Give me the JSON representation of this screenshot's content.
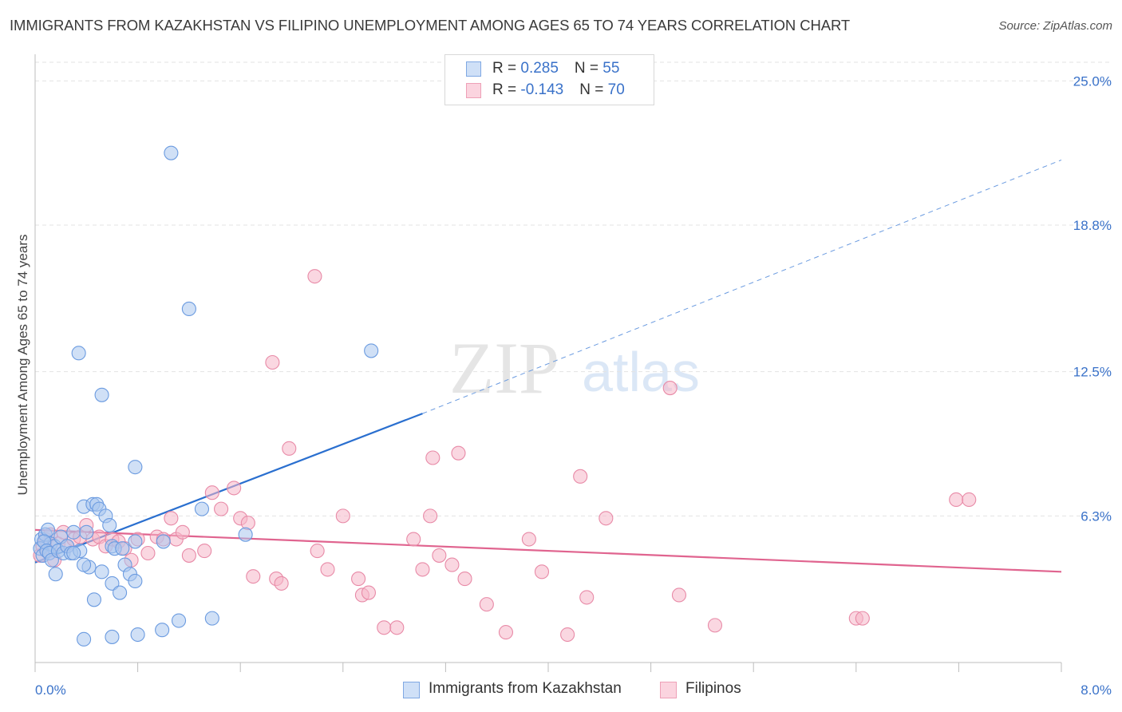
{
  "title": "IMMIGRANTS FROM KAZAKHSTAN VS FILIPINO UNEMPLOYMENT AMONG AGES 65 TO 74 YEARS CORRELATION CHART",
  "source": "Source: ZipAtlas.com",
  "watermark": {
    "zip": "ZIP",
    "atlas": "atlas"
  },
  "legend_top": [
    {
      "r_label": "R = ",
      "r_value": "0.285",
      "n_label": "N = ",
      "n_value": "55",
      "color": "#a9c7ef"
    },
    {
      "r_label": "R = ",
      "r_value": "-0.143",
      "n_label": "N = ",
      "n_value": "70",
      "color": "#f5b7c9"
    }
  ],
  "legend_bottom": [
    {
      "label": "Immigrants from Kazakhstan",
      "color": "#a9c7ef"
    },
    {
      "label": "Filipinos",
      "color": "#f5b7c9"
    }
  ],
  "colors": {
    "blue_fill": "#a9c7ef",
    "blue_stroke": "#6b9be0",
    "blue_line": "#2a6fcf",
    "pink_fill": "#f5b7c9",
    "pink_stroke": "#e88aa7",
    "pink_line": "#e0648f",
    "tick_label": "#3a72c9",
    "grid": "#e3e3e3"
  },
  "chart_data": {
    "type": "scatter",
    "title": "IMMIGRANTS FROM KAZAKHSTAN VS FILIPINO UNEMPLOYMENT AMONG AGES 65 TO 74 YEARS CORRELATION CHART",
    "xlabel": "",
    "ylabel": "Unemployment Among Ages 65 to 74 years",
    "xlim": [
      0,
      8
    ],
    "ylim": [
      0,
      25.8
    ],
    "x_tick_labels": [
      "0.0%",
      "8.0%"
    ],
    "y_ticks": [
      6.3,
      12.5,
      18.8,
      25.0
    ],
    "y_tick_labels": [
      "6.3%",
      "12.5%",
      "18.8%",
      "25.0%"
    ],
    "grid": true,
    "legend_position": "top-center",
    "series": [
      {
        "name": "Immigrants from Kazakhstan",
        "color": "#a9c7ef",
        "points": [
          [
            0.05,
            5.3
          ],
          [
            0.08,
            5.5
          ],
          [
            0.1,
            5.7
          ],
          [
            0.12,
            5.1
          ],
          [
            0.15,
            5.0
          ],
          [
            0.04,
            4.9
          ],
          [
            0.06,
            4.6
          ],
          [
            0.07,
            5.2
          ],
          [
            0.09,
            4.8
          ],
          [
            0.11,
            4.7
          ],
          [
            0.13,
            4.4
          ],
          [
            0.18,
            4.8
          ],
          [
            0.2,
            5.4
          ],
          [
            0.22,
            4.7
          ],
          [
            0.25,
            5.0
          ],
          [
            0.28,
            4.7
          ],
          [
            0.3,
            5.6
          ],
          [
            0.35,
            4.8
          ],
          [
            0.38,
            6.7
          ],
          [
            0.4,
            5.6
          ],
          [
            0.45,
            6.8
          ],
          [
            0.48,
            6.8
          ],
          [
            0.5,
            6.6
          ],
          [
            0.55,
            6.3
          ],
          [
            0.58,
            5.9
          ],
          [
            0.6,
            5.0
          ],
          [
            0.62,
            4.9
          ],
          [
            0.68,
            4.9
          ],
          [
            0.7,
            4.2
          ],
          [
            0.74,
            3.8
          ],
          [
            0.78,
            5.2
          ],
          [
            0.52,
            3.9
          ],
          [
            0.42,
            4.1
          ],
          [
            0.38,
            4.2
          ],
          [
            0.3,
            4.7
          ],
          [
            0.16,
            3.8
          ],
          [
            0.46,
            2.7
          ],
          [
            0.6,
            3.4
          ],
          [
            0.66,
            3.0
          ],
          [
            0.78,
            3.5
          ],
          [
            0.8,
            1.2
          ],
          [
            0.99,
            1.4
          ],
          [
            1.12,
            1.8
          ],
          [
            1.38,
            1.9
          ],
          [
            0.38,
            1.0
          ],
          [
            0.6,
            1.1
          ],
          [
            0.78,
            8.4
          ],
          [
            1.3,
            6.6
          ],
          [
            1.64,
            5.5
          ],
          [
            0.34,
            13.3
          ],
          [
            0.52,
            11.5
          ],
          [
            1.2,
            15.2
          ],
          [
            1.06,
            21.9
          ],
          [
            2.62,
            13.4
          ],
          [
            1.0,
            5.2
          ]
        ]
      },
      {
        "name": "Filipinos",
        "color": "#f5b7c9",
        "points": [
          [
            0.04,
            4.6
          ],
          [
            0.06,
            5.0
          ],
          [
            0.08,
            5.3
          ],
          [
            0.1,
            4.8
          ],
          [
            0.12,
            5.5
          ],
          [
            0.15,
            4.4
          ],
          [
            0.18,
            5.1
          ],
          [
            0.22,
            5.6
          ],
          [
            0.25,
            5.0
          ],
          [
            0.3,
            5.3
          ],
          [
            0.35,
            5.4
          ],
          [
            0.4,
            5.9
          ],
          [
            0.45,
            5.3
          ],
          [
            0.5,
            5.4
          ],
          [
            0.55,
            5.0
          ],
          [
            0.6,
            5.3
          ],
          [
            0.65,
            5.2
          ],
          [
            0.7,
            4.9
          ],
          [
            0.75,
            4.4
          ],
          [
            0.8,
            5.3
          ],
          [
            0.88,
            4.7
          ],
          [
            0.95,
            5.4
          ],
          [
            1.0,
            5.3
          ],
          [
            1.06,
            6.2
          ],
          [
            1.1,
            5.3
          ],
          [
            1.15,
            5.6
          ],
          [
            1.2,
            4.6
          ],
          [
            1.32,
            4.8
          ],
          [
            1.38,
            7.3
          ],
          [
            1.45,
            6.6
          ],
          [
            1.55,
            7.5
          ],
          [
            1.6,
            6.2
          ],
          [
            1.66,
            6.0
          ],
          [
            1.7,
            3.7
          ],
          [
            1.88,
            3.6
          ],
          [
            1.92,
            3.4
          ],
          [
            1.98,
            9.2
          ],
          [
            2.2,
            4.8
          ],
          [
            2.28,
            4.0
          ],
          [
            2.4,
            6.3
          ],
          [
            2.52,
            3.6
          ],
          [
            2.55,
            2.9
          ],
          [
            2.6,
            3.0
          ],
          [
            2.72,
            1.5
          ],
          [
            2.82,
            1.5
          ],
          [
            2.95,
            5.3
          ],
          [
            3.02,
            4.0
          ],
          [
            3.08,
            6.3
          ],
          [
            3.1,
            8.8
          ],
          [
            3.15,
            4.6
          ],
          [
            3.25,
            4.2
          ],
          [
            3.3,
            9.0
          ],
          [
            3.35,
            3.6
          ],
          [
            3.52,
            2.5
          ],
          [
            3.67,
            1.3
          ],
          [
            3.85,
            5.3
          ],
          [
            3.95,
            3.9
          ],
          [
            4.15,
            1.2
          ],
          [
            4.25,
            8.0
          ],
          [
            4.3,
            2.8
          ],
          [
            4.45,
            6.2
          ],
          [
            4.95,
            11.8
          ],
          [
            5.02,
            2.9
          ],
          [
            5.3,
            1.6
          ],
          [
            6.4,
            1.9
          ],
          [
            6.45,
            1.9
          ],
          [
            7.18,
            7.0
          ],
          [
            7.28,
            7.0
          ],
          [
            2.18,
            16.6
          ],
          [
            1.85,
            12.9
          ]
        ]
      }
    ],
    "trend_lines": [
      {
        "series": "Immigrants from Kazakhstan",
        "solid": [
          [
            0.0,
            4.3
          ],
          [
            3.02,
            10.7
          ]
        ],
        "dashed": [
          [
            3.02,
            10.7
          ],
          [
            8.0,
            21.6
          ]
        ]
      },
      {
        "series": "Filipinos",
        "solid": [
          [
            0.0,
            5.7
          ],
          [
            8.0,
            3.9
          ]
        ]
      }
    ]
  }
}
